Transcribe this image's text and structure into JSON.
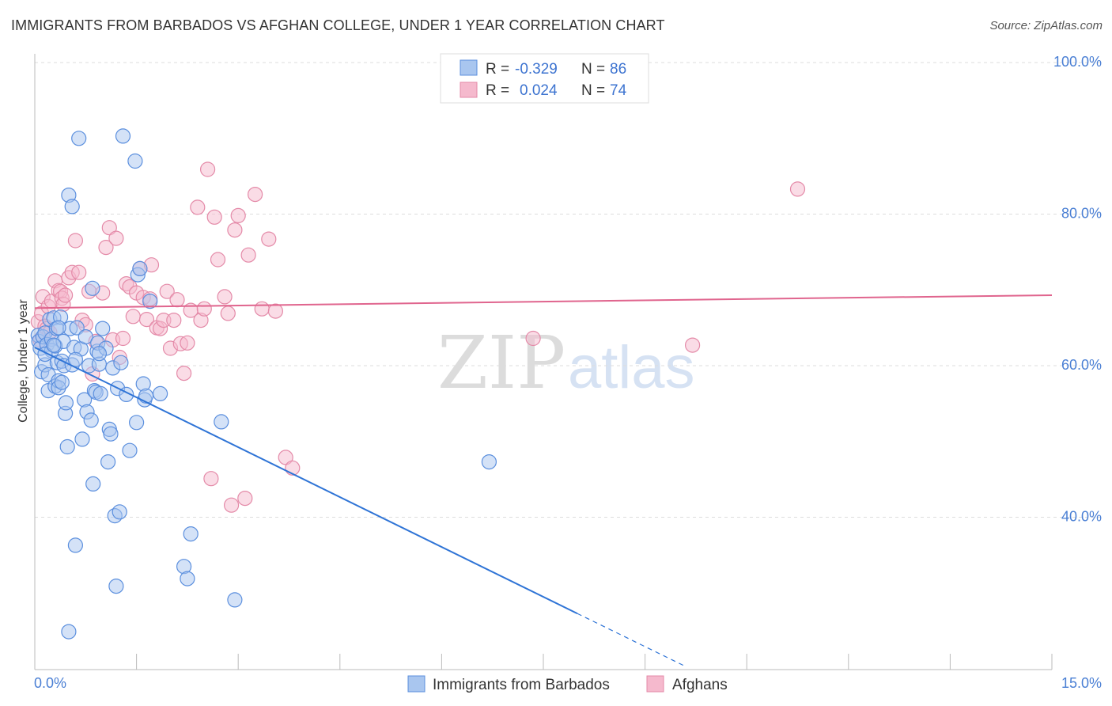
{
  "header": {
    "title": "IMMIGRANTS FROM BARBADOS VS AFGHAN COLLEGE, UNDER 1 YEAR CORRELATION CHART",
    "source": "Source: ZipAtlas.com"
  },
  "watermark": {
    "zip": "ZIP",
    "atlas": "atlas"
  },
  "legend": {
    "rows": [
      {
        "r_label": "R = ",
        "r_value": "-0.329",
        "n_label": "N = ",
        "n_value": "86"
      },
      {
        "r_label": "R = ",
        "r_value": "0.024",
        "n_label": "N = ",
        "n_value": "74"
      }
    ]
  },
  "bottom_legend": [
    "Immigrants from Barbados",
    "Afghans"
  ],
  "colors": {
    "blue_fill": "#a9c6ef",
    "blue_stroke": "#5b8fde",
    "blue_line": "#2f74d6",
    "pink_fill": "#f5b9cd",
    "pink_stroke": "#e48aa8",
    "pink_line": "#e0658e",
    "grid": "#dddddd",
    "tick_label": "#4a7fd4"
  },
  "chart_data": {
    "type": "scatter",
    "title": "IMMIGRANTS FROM BARBADOS VS AFGHAN COLLEGE, UNDER 1 YEAR CORRELATION CHART",
    "xlabel": "",
    "ylabel": "College, Under 1 year",
    "xlim": [
      0,
      15
    ],
    "ylim": [
      22,
      103
    ],
    "x_tick_labels": [
      "0.0%",
      "15.0%"
    ],
    "y_ticks": [
      40,
      60,
      80,
      100
    ],
    "y_tick_labels": [
      "40.0%",
      "60.0%",
      "80.0%",
      "100.0%"
    ],
    "grid": true,
    "legend_placement": "top-center",
    "series": [
      {
        "name": "Immigrants from Barbados",
        "r": -0.329,
        "n": 86,
        "trend": {
          "x0": 0.0,
          "y0": 62.4,
          "x1": 8.0,
          "y1": 27.3,
          "dash_to_x": 9.6,
          "dash_to_y": 20.3
        },
        "points": [
          [
            0.05,
            64.0
          ],
          [
            0.06,
            63.2
          ],
          [
            0.08,
            62.3
          ],
          [
            0.1,
            59.2
          ],
          [
            0.12,
            63.8
          ],
          [
            0.15,
            64.3
          ],
          [
            0.15,
            60.1
          ],
          [
            0.18,
            62.8
          ],
          [
            0.2,
            58.8
          ],
          [
            0.2,
            56.7
          ],
          [
            0.22,
            66.1
          ],
          [
            0.25,
            63.5
          ],
          [
            0.25,
            62.0
          ],
          [
            0.28,
            66.3
          ],
          [
            0.3,
            57.3
          ],
          [
            0.3,
            62.6
          ],
          [
            0.32,
            64.9
          ],
          [
            0.33,
            60.4
          ],
          [
            0.35,
            58.0
          ],
          [
            0.35,
            57.1
          ],
          [
            0.38,
            66.4
          ],
          [
            0.4,
            60.6
          ],
          [
            0.42,
            63.2
          ],
          [
            0.43,
            60.0
          ],
          [
            0.45,
            53.7
          ],
          [
            0.46,
            55.1
          ],
          [
            0.48,
            49.3
          ],
          [
            0.5,
            82.5
          ],
          [
            0.52,
            64.9
          ],
          [
            0.55,
            81.0
          ],
          [
            0.55,
            60.1
          ],
          [
            0.58,
            62.4
          ],
          [
            0.6,
            36.3
          ],
          [
            0.62,
            65.0
          ],
          [
            0.65,
            90.0
          ],
          [
            0.68,
            62.2
          ],
          [
            0.7,
            50.3
          ],
          [
            0.73,
            55.5
          ],
          [
            0.75,
            63.8
          ],
          [
            0.77,
            53.9
          ],
          [
            0.8,
            60.0
          ],
          [
            0.83,
            52.8
          ],
          [
            0.85,
            70.2
          ],
          [
            0.86,
            44.4
          ],
          [
            0.88,
            56.7
          ],
          [
            0.9,
            56.5
          ],
          [
            0.92,
            61.9
          ],
          [
            0.93,
            63.0
          ],
          [
            0.95,
            60.2
          ],
          [
            0.97,
            56.3
          ],
          [
            1.0,
            64.9
          ],
          [
            1.05,
            62.3
          ],
          [
            1.08,
            47.3
          ],
          [
            1.1,
            51.6
          ],
          [
            1.12,
            51.0
          ],
          [
            1.15,
            59.7
          ],
          [
            1.18,
            40.2
          ],
          [
            1.2,
            30.9
          ],
          [
            1.22,
            57.0
          ],
          [
            1.25,
            40.7
          ],
          [
            1.27,
            60.4
          ],
          [
            1.3,
            90.3
          ],
          [
            1.35,
            56.2
          ],
          [
            1.4,
            48.8
          ],
          [
            1.48,
            87.0
          ],
          [
            1.5,
            52.5
          ],
          [
            1.52,
            72.0
          ],
          [
            1.55,
            72.8
          ],
          [
            1.6,
            57.6
          ],
          [
            1.62,
            55.5
          ],
          [
            1.64,
            56.0
          ],
          [
            1.7,
            68.5
          ],
          [
            1.85,
            56.3
          ],
          [
            2.2,
            33.5
          ],
          [
            2.25,
            31.9
          ],
          [
            2.3,
            37.8
          ],
          [
            2.75,
            52.6
          ],
          [
            2.95,
            29.1
          ],
          [
            0.5,
            24.9
          ],
          [
            6.7,
            47.3
          ],
          [
            0.35,
            65.0
          ],
          [
            0.15,
            61.5
          ],
          [
            0.4,
            57.8
          ],
          [
            0.28,
            62.7
          ],
          [
            0.6,
            60.8
          ],
          [
            0.95,
            61.6
          ]
        ]
      },
      {
        "name": "Afghans",
        "r": 0.024,
        "n": 74,
        "trend": {
          "x0": 0.0,
          "y0": 67.6,
          "x1": 15.0,
          "y1": 69.3
        },
        "points": [
          [
            0.05,
            65.8
          ],
          [
            0.08,
            63.4
          ],
          [
            0.1,
            66.9
          ],
          [
            0.12,
            69.1
          ],
          [
            0.15,
            65.2
          ],
          [
            0.18,
            64.9
          ],
          [
            0.2,
            67.8
          ],
          [
            0.22,
            64.4
          ],
          [
            0.25,
            68.5
          ],
          [
            0.3,
            71.2
          ],
          [
            0.35,
            69.9
          ],
          [
            0.38,
            69.8
          ],
          [
            0.4,
            68.9
          ],
          [
            0.42,
            68.1
          ],
          [
            0.45,
            69.3
          ],
          [
            0.5,
            71.6
          ],
          [
            0.55,
            72.3
          ],
          [
            0.6,
            76.5
          ],
          [
            0.65,
            72.3
          ],
          [
            0.7,
            66.0
          ],
          [
            0.75,
            65.4
          ],
          [
            0.8,
            69.8
          ],
          [
            0.85,
            58.9
          ],
          [
            0.9,
            63.2
          ],
          [
            1.0,
            69.6
          ],
          [
            1.05,
            75.6
          ],
          [
            1.1,
            78.2
          ],
          [
            1.15,
            63.4
          ],
          [
            1.2,
            76.8
          ],
          [
            1.25,
            61.1
          ],
          [
            1.3,
            63.6
          ],
          [
            1.35,
            70.8
          ],
          [
            1.4,
            70.4
          ],
          [
            1.45,
            66.5
          ],
          [
            1.5,
            69.6
          ],
          [
            1.55,
            72.8
          ],
          [
            1.6,
            69.0
          ],
          [
            1.65,
            66.1
          ],
          [
            1.7,
            68.8
          ],
          [
            1.72,
            73.3
          ],
          [
            1.8,
            65.0
          ],
          [
            1.85,
            64.9
          ],
          [
            1.9,
            66.0
          ],
          [
            1.95,
            69.8
          ],
          [
            2.0,
            62.3
          ],
          [
            2.05,
            66.0
          ],
          [
            2.1,
            68.7
          ],
          [
            2.15,
            62.9
          ],
          [
            2.2,
            59.0
          ],
          [
            2.25,
            63.0
          ],
          [
            2.3,
            67.3
          ],
          [
            2.4,
            80.9
          ],
          [
            2.45,
            66.0
          ],
          [
            2.5,
            67.5
          ],
          [
            2.55,
            85.9
          ],
          [
            2.6,
            45.1
          ],
          [
            2.65,
            79.6
          ],
          [
            2.7,
            74.0
          ],
          [
            2.8,
            69.1
          ],
          [
            2.85,
            66.9
          ],
          [
            2.9,
            41.6
          ],
          [
            2.95,
            77.9
          ],
          [
            3.0,
            79.8
          ],
          [
            3.1,
            42.5
          ],
          [
            3.15,
            74.6
          ],
          [
            3.25,
            82.6
          ],
          [
            3.35,
            67.5
          ],
          [
            3.45,
            76.7
          ],
          [
            3.55,
            67.2
          ],
          [
            3.7,
            47.9
          ],
          [
            3.8,
            46.5
          ],
          [
            9.7,
            62.7
          ],
          [
            11.25,
            83.3
          ],
          [
            7.35,
            63.6
          ]
        ]
      }
    ]
  }
}
